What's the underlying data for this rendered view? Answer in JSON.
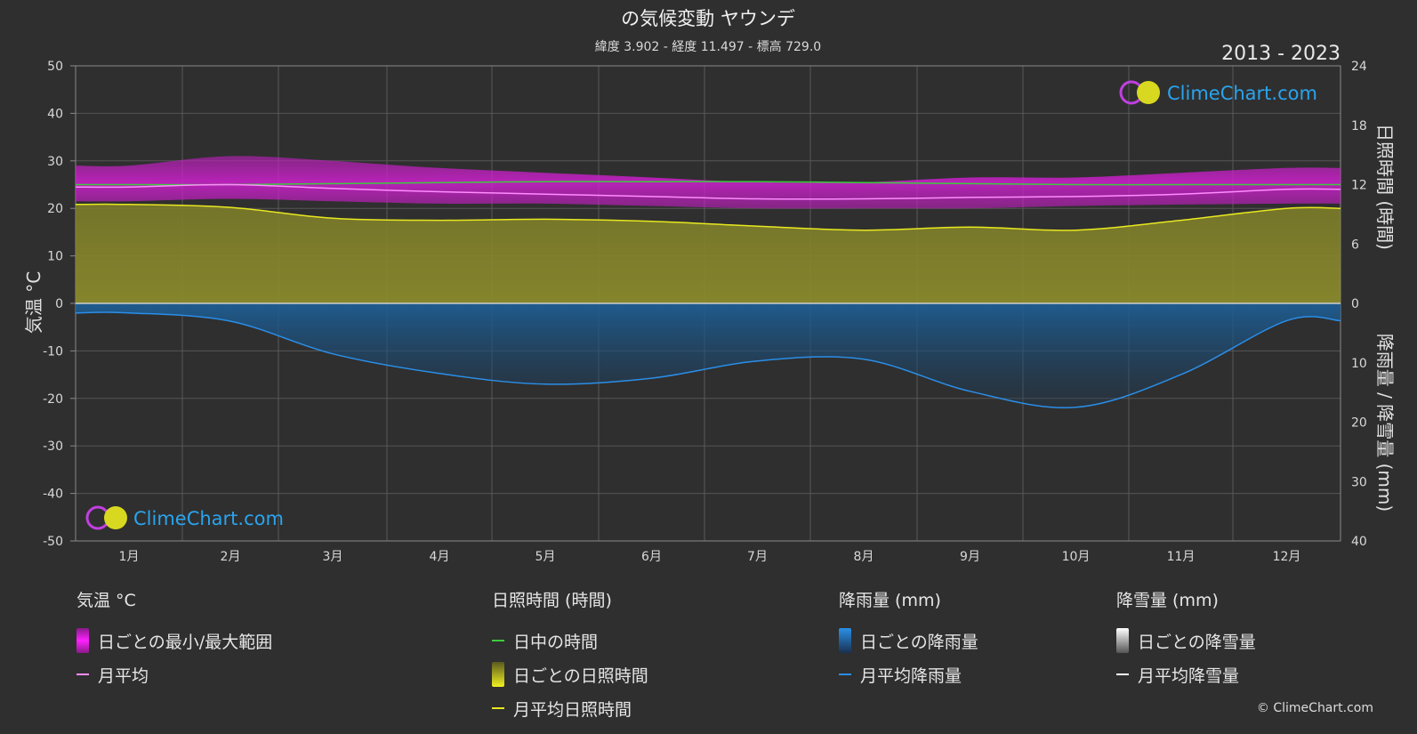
{
  "header": {
    "title": "の気候変動 ヤウンデ",
    "subtitle": "緯度 3.902 - 経度 11.497 - 標高 729.0",
    "period": "2013 - 2023"
  },
  "brand": {
    "logo_text": "ClimeChart.com",
    "copyright": "© ClimeChart.com"
  },
  "axes": {
    "left_label": "気温 °C",
    "right_top_label": "日照時間 (時間)",
    "right_bottom_label": "降雨量 / 降雪量 (mm)"
  },
  "chart_data": {
    "type": "area",
    "categories": [
      "1月",
      "2月",
      "3月",
      "4月",
      "5月",
      "6月",
      "7月",
      "8月",
      "9月",
      "10月",
      "11月",
      "12月"
    ],
    "left_axis": {
      "ylim": [
        -50,
        50
      ],
      "ticks": [
        50,
        40,
        30,
        20,
        10,
        0,
        -10,
        -20,
        -30,
        -40,
        -50
      ]
    },
    "right_top_axis": {
      "ylim": [
        0,
        24
      ],
      "ticks": [
        24,
        18,
        12,
        6,
        0
      ]
    },
    "right_bottom_axis": {
      "ylim": [
        0,
        40
      ],
      "ticks": [
        10,
        20,
        30,
        40
      ]
    },
    "grid": true,
    "series": [
      {
        "name": "日中の時間",
        "axis": "sunshine",
        "values": [
          12.0,
          12.0,
          12.1,
          12.2,
          12.3,
          12.3,
          12.3,
          12.2,
          12.1,
          12.0,
          12.0,
          12.0
        ]
      },
      {
        "name": "月平均",
        "axis": "temperature",
        "values": [
          24.5,
          25.0,
          24.2,
          23.5,
          23.0,
          22.5,
          22.0,
          22.0,
          22.3,
          22.5,
          23.0,
          24.0
        ]
      },
      {
        "name": "日ごとの最小/最大範囲",
        "axis": "temperature",
        "min": [
          21.5,
          22.0,
          21.5,
          21.0,
          21.0,
          20.5,
          20.0,
          20.0,
          20.0,
          20.5,
          20.8,
          21.0
        ],
        "max": [
          29.0,
          31.0,
          30.0,
          28.5,
          27.5,
          26.5,
          25.5,
          25.5,
          26.5,
          26.5,
          27.5,
          28.5
        ]
      },
      {
        "name": "月平均日照時間",
        "axis": "sunshine",
        "values": [
          10.0,
          9.7,
          8.6,
          8.4,
          8.5,
          8.3,
          7.8,
          7.4,
          7.7,
          7.4,
          8.4,
          9.6
        ]
      },
      {
        "name": "月平均降雨量",
        "axis": "precipitation",
        "values": [
          1.6,
          3.0,
          8.5,
          11.8,
          13.6,
          12.6,
          9.7,
          9.4,
          14.8,
          17.5,
          12.0,
          2.9
        ]
      },
      {
        "name": "月平均降雪量",
        "axis": "precipitation",
        "values": [
          0,
          0,
          0,
          0,
          0,
          0,
          0,
          0,
          0,
          0,
          0,
          0
        ]
      }
    ]
  },
  "legend": {
    "temp": {
      "header": "気温 °C",
      "items": [
        "日ごとの最小/最大範囲",
        "月平均"
      ]
    },
    "sun": {
      "header": "日照時間 (時間)",
      "items": [
        "日中の時間",
        "日ごとの日照時間",
        "月平均日照時間"
      ]
    },
    "rain": {
      "header": "降雨量 (mm)",
      "items": [
        "日ごとの降雨量",
        "月平均降雨量"
      ]
    },
    "snow": {
      "header": "降雪量 (mm)",
      "items": [
        "日ごとの降雪量",
        "月平均降雪量"
      ]
    }
  },
  "colors": {
    "background": "#2f2f2f",
    "grid": "#555555",
    "temp_range": "#c81ec8",
    "temp_avg": "#ff8cff",
    "daylight": "#3ccc3c",
    "sunshine_fill": "#8c8c28",
    "sunshine_avg": "#e8e820",
    "rain_fill": "#1e5a8c",
    "rain_avg": "#2a8ee8",
    "snow_avg": "#ffffff"
  }
}
